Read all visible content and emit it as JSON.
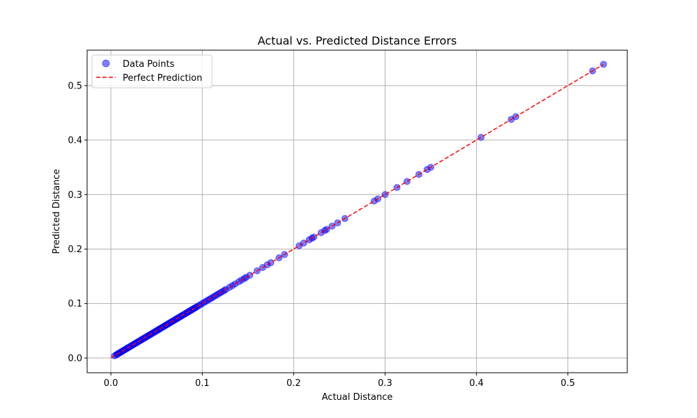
{
  "chart_data": {
    "type": "scatter",
    "title": "Actual vs. Predicted Distance Errors",
    "xlabel": "Actual Distance",
    "ylabel": "Predicted Distance",
    "xlim": [
      -0.026,
      0.565
    ],
    "ylim": [
      -0.027,
      0.565
    ],
    "xticks": [
      0.0,
      0.1,
      0.2,
      0.3,
      0.4,
      0.5
    ],
    "yticks": [
      0.0,
      0.1,
      0.2,
      0.3,
      0.4,
      0.5
    ],
    "grid": true,
    "legend_position": "top-left",
    "series": [
      {
        "name": "Data Points",
        "kind": "scatter",
        "color": "#0000ff",
        "alpha": 0.5,
        "x": [
          0.004,
          0.006,
          0.007,
          0.008,
          0.009,
          0.01,
          0.011,
          0.012,
          0.013,
          0.014,
          0.015,
          0.016,
          0.017,
          0.018,
          0.019,
          0.02,
          0.021,
          0.022,
          0.023,
          0.024,
          0.025,
          0.026,
          0.027,
          0.028,
          0.029,
          0.03,
          0.031,
          0.032,
          0.033,
          0.034,
          0.035,
          0.036,
          0.037,
          0.038,
          0.039,
          0.04,
          0.041,
          0.042,
          0.043,
          0.044,
          0.045,
          0.046,
          0.047,
          0.048,
          0.049,
          0.05,
          0.051,
          0.052,
          0.053,
          0.054,
          0.055,
          0.056,
          0.057,
          0.058,
          0.059,
          0.06,
          0.061,
          0.062,
          0.063,
          0.064,
          0.065,
          0.066,
          0.067,
          0.068,
          0.069,
          0.07,
          0.071,
          0.072,
          0.073,
          0.074,
          0.075,
          0.076,
          0.077,
          0.078,
          0.079,
          0.08,
          0.081,
          0.082,
          0.083,
          0.084,
          0.085,
          0.086,
          0.087,
          0.088,
          0.089,
          0.09,
          0.091,
          0.092,
          0.093,
          0.094,
          0.096,
          0.098,
          0.1,
          0.102,
          0.104,
          0.106,
          0.108,
          0.11,
          0.112,
          0.114,
          0.116,
          0.118,
          0.12,
          0.122,
          0.124,
          0.126,
          0.13,
          0.133,
          0.136,
          0.14,
          0.143,
          0.146,
          0.148,
          0.152,
          0.16,
          0.166,
          0.171,
          0.175,
          0.184,
          0.19,
          0.206,
          0.211,
          0.217,
          0.22,
          0.222,
          0.23,
          0.234,
          0.236,
          0.242,
          0.248,
          0.256,
          0.288,
          0.292,
          0.3,
          0.313,
          0.324,
          0.337,
          0.346,
          0.35,
          0.405,
          0.438,
          0.443,
          0.527,
          0.539
        ],
        "y": [
          0.004,
          0.006,
          0.007,
          0.008,
          0.009,
          0.01,
          0.011,
          0.012,
          0.013,
          0.014,
          0.015,
          0.016,
          0.017,
          0.018,
          0.019,
          0.02,
          0.021,
          0.022,
          0.023,
          0.024,
          0.025,
          0.026,
          0.027,
          0.028,
          0.029,
          0.03,
          0.031,
          0.032,
          0.033,
          0.034,
          0.035,
          0.036,
          0.037,
          0.038,
          0.039,
          0.04,
          0.041,
          0.042,
          0.043,
          0.044,
          0.045,
          0.046,
          0.047,
          0.048,
          0.049,
          0.05,
          0.051,
          0.052,
          0.053,
          0.054,
          0.055,
          0.056,
          0.057,
          0.058,
          0.059,
          0.06,
          0.061,
          0.062,
          0.063,
          0.064,
          0.065,
          0.066,
          0.067,
          0.068,
          0.069,
          0.07,
          0.071,
          0.072,
          0.073,
          0.074,
          0.075,
          0.076,
          0.077,
          0.078,
          0.079,
          0.08,
          0.081,
          0.082,
          0.083,
          0.084,
          0.085,
          0.086,
          0.087,
          0.088,
          0.089,
          0.09,
          0.091,
          0.092,
          0.093,
          0.094,
          0.096,
          0.098,
          0.1,
          0.102,
          0.104,
          0.106,
          0.108,
          0.11,
          0.112,
          0.114,
          0.116,
          0.118,
          0.12,
          0.122,
          0.124,
          0.126,
          0.13,
          0.133,
          0.136,
          0.14,
          0.143,
          0.146,
          0.148,
          0.152,
          0.16,
          0.166,
          0.171,
          0.175,
          0.184,
          0.19,
          0.206,
          0.211,
          0.217,
          0.22,
          0.222,
          0.23,
          0.234,
          0.236,
          0.242,
          0.248,
          0.256,
          0.288,
          0.292,
          0.3,
          0.313,
          0.324,
          0.337,
          0.346,
          0.35,
          0.405,
          0.438,
          0.443,
          0.527,
          0.539
        ]
      },
      {
        "name": "Perfect Prediction",
        "kind": "line",
        "color": "#ff0000",
        "style": "dashed",
        "x": [
          0.0,
          0.539
        ],
        "y": [
          0.0,
          0.539
        ]
      }
    ]
  }
}
